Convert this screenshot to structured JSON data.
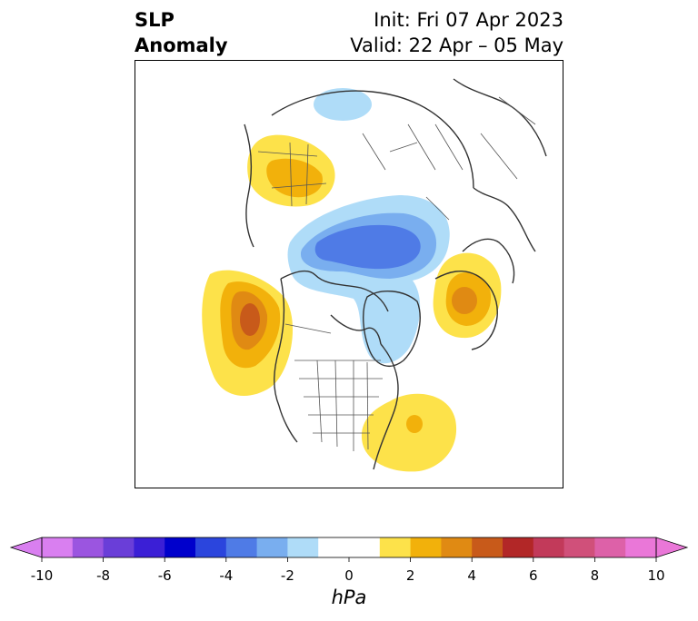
{
  "title": {
    "left_line1": "SLP",
    "left_line2": "Anomaly",
    "right_line1": "Init: Fri 07 Apr 2023",
    "right_line2": "Valid: 22 Apr – 05 May"
  },
  "colorbar": {
    "unit": "hPa",
    "tick_labels": [
      "-10",
      "-8",
      "-6",
      "-4",
      "-2",
      "0",
      "2",
      "4",
      "6",
      "8",
      "10"
    ],
    "colors": [
      "#d97ff0",
      "#9b55e0",
      "#6a3ed8",
      "#3b1fd6",
      "#0000cc",
      "#2b45dd",
      "#4f7be6",
      "#79aeef",
      "#afdcf8",
      "#ffffff",
      "#ffffff",
      "#fde24a",
      "#f2b10b",
      "#e08a13",
      "#c85a1a",
      "#b22727",
      "#c23a5a",
      "#d0507a",
      "#dd61a8",
      "#ea77d8"
    ],
    "extend": "both"
  },
  "anomaly_colors": {
    "light_blue": "#afdcf8",
    "mid_blue": "#79aeef",
    "blue": "#4f7be6",
    "yellow": "#fde24a",
    "gold": "#f2b10b",
    "orange": "#e08a13",
    "red_orange": "#c85a1a"
  }
}
